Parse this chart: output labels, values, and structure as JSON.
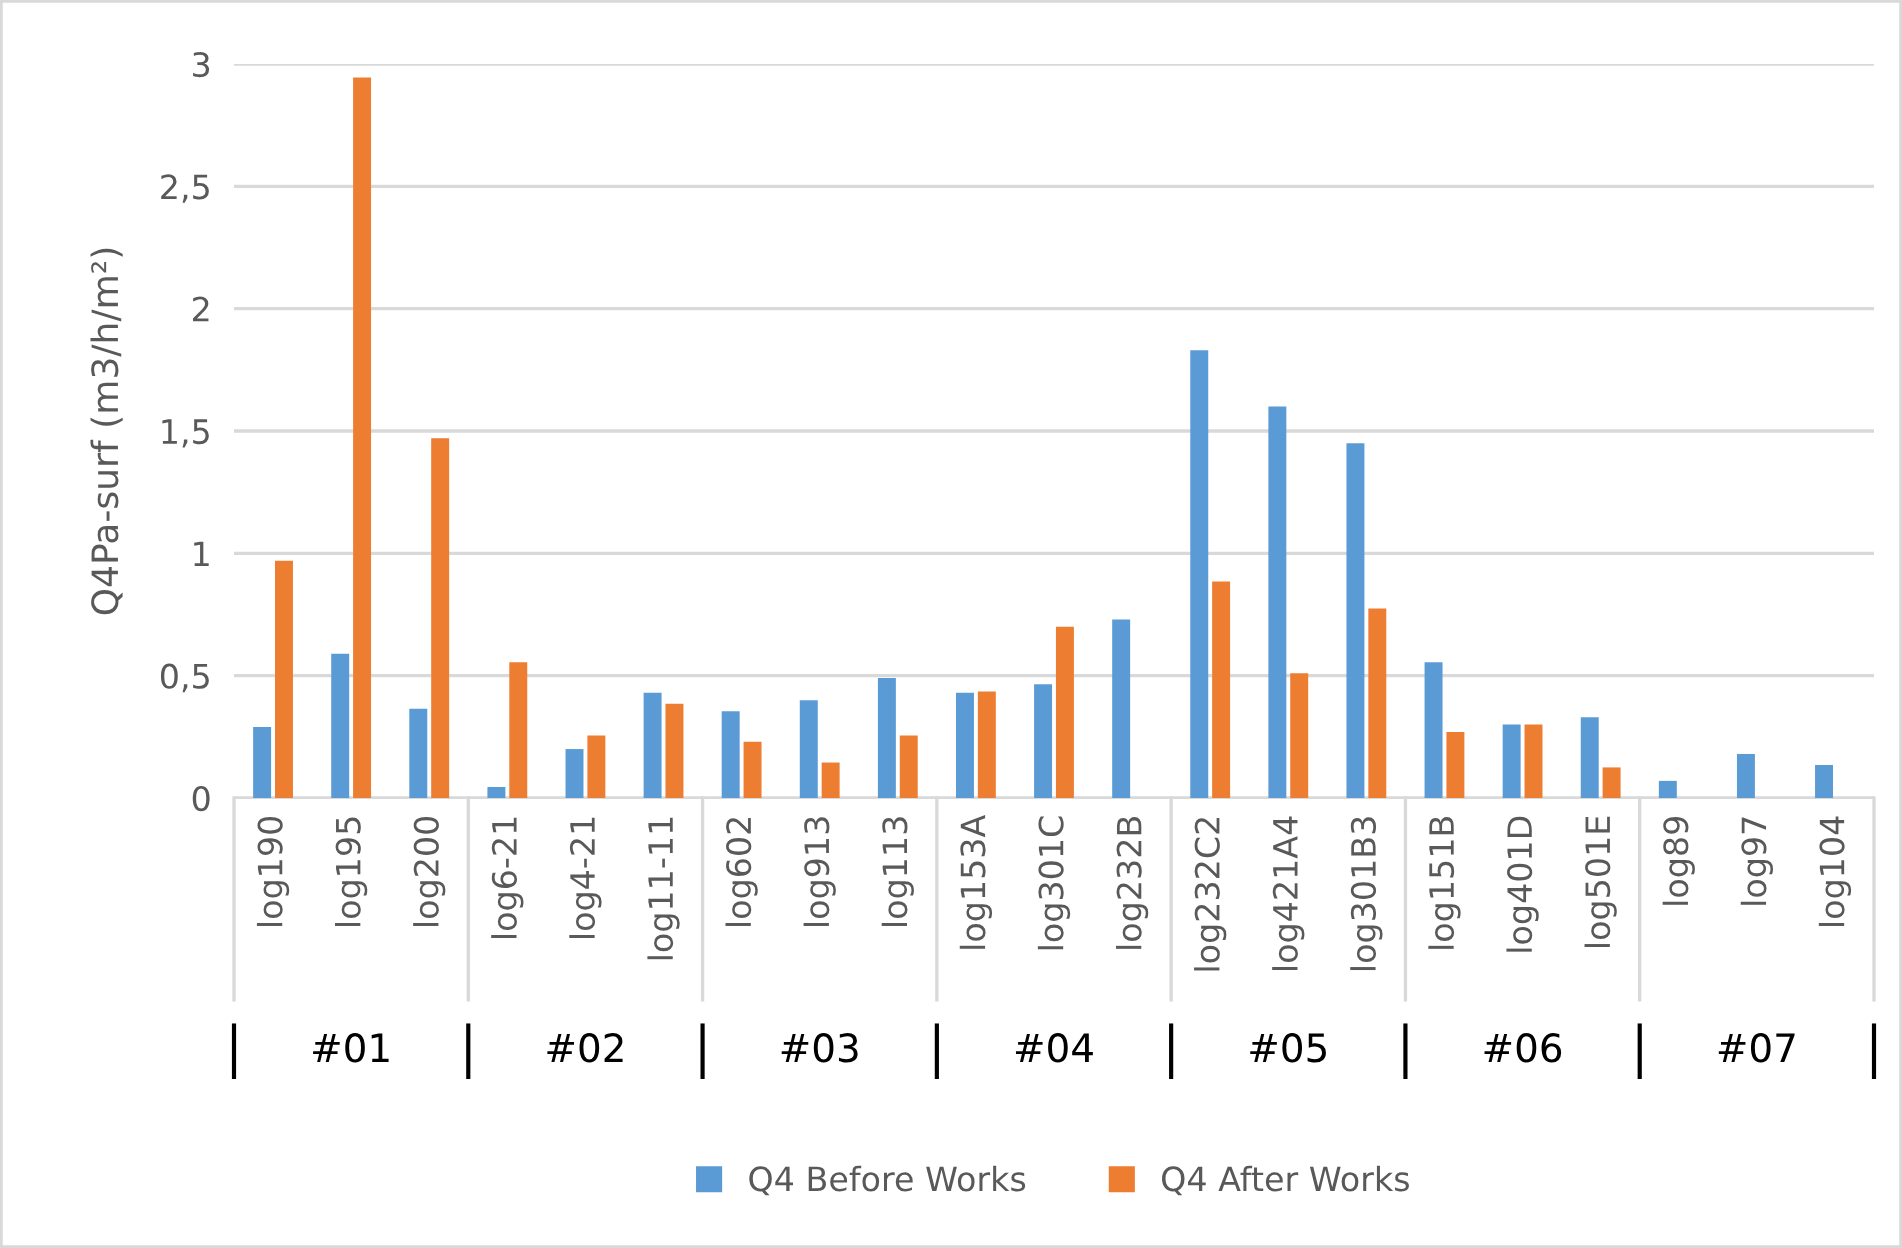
{
  "chart_data": {
    "type": "bar",
    "ylabel": "Q4Pa-surf (m3/h/m²)",
    "categories": [
      "log190",
      "log195",
      "log200",
      "log6-21",
      "log4-21",
      "log11-11",
      "log602",
      "log913",
      "log113",
      "log153A",
      "log301C",
      "log232B",
      "log232C2",
      "log421A4",
      "log301B3",
      "log151B",
      "log401D",
      "log501E",
      "log89",
      "log97",
      "log104"
    ],
    "series": [
      {
        "name": "Q4 Before Works",
        "color": "#5b9bd5",
        "values": [
          0.29,
          0.59,
          0.365,
          0.045,
          0.2,
          0.43,
          0.355,
          0.4,
          0.49,
          0.43,
          0.465,
          0.73,
          1.83,
          1.6,
          1.45,
          0.555,
          0.3,
          0.33,
          0.07,
          0.18,
          0.135
        ]
      },
      {
        "name": "Q4 After Works",
        "color": "#ed7d31",
        "values": [
          0.97,
          2.945,
          1.47,
          0.555,
          0.255,
          0.385,
          0.23,
          0.145,
          0.255,
          0.435,
          0.7,
          null,
          0.885,
          0.51,
          0.775,
          0.27,
          0.3,
          0.125,
          null,
          null,
          null
        ]
      }
    ],
    "ylim": [
      0,
      3
    ],
    "yticks": [
      0,
      {
        "value": 0.5,
        "label": "0,5"
      },
      1,
      {
        "value": 1.5,
        "label": "1,5"
      },
      2,
      {
        "value": 2.5,
        "label": "2,5"
      },
      3
    ],
    "grid": "y",
    "legend": "bottom",
    "annotations": [
      "#01",
      "#02",
      "#03",
      "#04",
      "#05",
      "#06",
      "#07"
    ]
  }
}
